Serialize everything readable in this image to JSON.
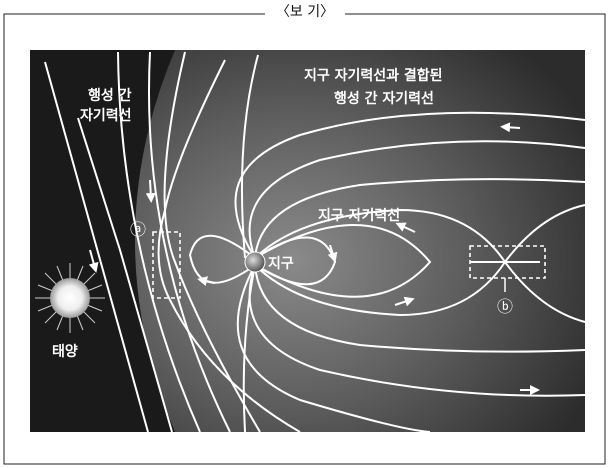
{
  "header": {
    "title": "〈보 기〉"
  },
  "figure": {
    "labels": {
      "interplanetary_field": [
        "행성 간",
        "자기력선"
      ],
      "connected_field": [
        "지구 자기력선과 결합된",
        "행성 간 자기력선"
      ],
      "earth_field": "지구 자기력선",
      "earth": "지구",
      "sun": "태양",
      "region_a": "ⓐ",
      "region_b": "ⓑ"
    }
  }
}
